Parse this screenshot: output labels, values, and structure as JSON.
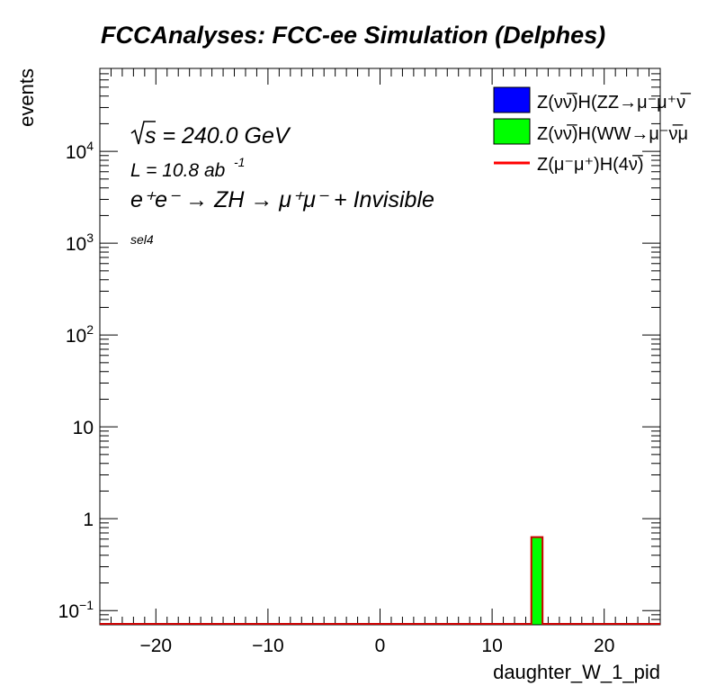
{
  "chart_data": {
    "type": "bar",
    "title": "FCCAnalyses: FCC-ee Simulation (Delphes)",
    "xlabel": "daughter_W_1_pid",
    "ylabel": "events",
    "xlim": [
      -25,
      25
    ],
    "ylim": [
      0.07,
      80000
    ],
    "yscale": "log",
    "xticks": [
      -20,
      -10,
      0,
      10,
      20
    ],
    "xtick_labels": [
      "−20",
      "−10",
      "0",
      "10",
      "20"
    ],
    "yticks": [
      {
        "value": 0.1,
        "base": "10",
        "exp": "−1"
      },
      {
        "value": 1,
        "base": "1",
        "exp": ""
      },
      {
        "value": 10,
        "base": "10",
        "exp": ""
      },
      {
        "value": 100,
        "base": "10",
        "exp": "2"
      },
      {
        "value": 1000,
        "base": "10",
        "exp": "3"
      },
      {
        "value": 10000,
        "base": "10",
        "exp": "4"
      }
    ],
    "annotations": {
      "sqrt_s": "s = 240.0 GeV",
      "lumi": "L = 10.8 ab",
      "lumi_exp": "-1",
      "process": "e⁺e⁻ → ZH → μ⁺μ⁻ + Invisible",
      "selection": "sel4"
    },
    "series": [
      {
        "name": "Z(νν̅)H(ZZ→μ⁻μ⁺ν̅",
        "color": "#0000ff",
        "kind": "fill",
        "bins": []
      },
      {
        "name": "Z(νν̅)H(WW→μ⁻ν̅μ",
        "color": "#00ff00",
        "kind": "fill",
        "bins": [
          {
            "x0": 13.5,
            "x1": 14.5,
            "value": 0.63
          }
        ]
      },
      {
        "name": "Z(μ⁻μ⁺)H(4ν̅)",
        "color": "#ff0000",
        "kind": "line",
        "bins": []
      }
    ],
    "legend_position": "top-right"
  }
}
